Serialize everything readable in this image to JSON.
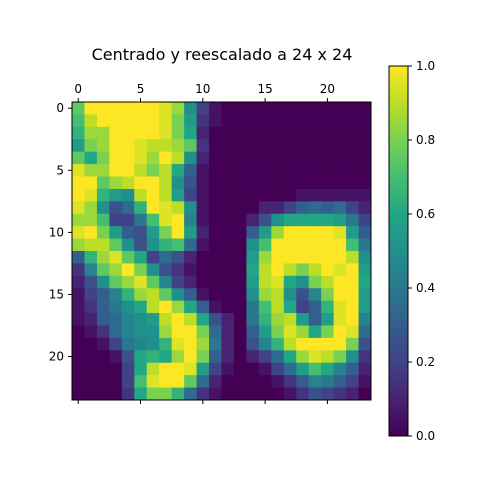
{
  "chart_data": {
    "type": "heatmap",
    "title": "Centrado y reescalado a 24 x 24",
    "xlabel": "",
    "ylabel": "",
    "colormap": "viridis",
    "x_axis_position": "top",
    "x_ticks": [
      0,
      5,
      10,
      15,
      20
    ],
    "y_ticks": [
      0,
      5,
      10,
      15,
      20
    ],
    "xlim": [
      -0.5,
      23.5
    ],
    "ylim": [
      23.5,
      -0.5
    ],
    "colorbar": {
      "range": [
        0.0,
        1.0
      ],
      "ticks": [
        "0.0",
        "0.2",
        "0.4",
        "0.6",
        "0.8",
        "1.0"
      ],
      "placement": "right"
    },
    "grid": false,
    "rows": [
      [
        0.75,
        1.0,
        1.0,
        1.0,
        1.0,
        1.0,
        1.0,
        0.95,
        0.85,
        0.5,
        0.2,
        0.05,
        0.0,
        0.0,
        0.0,
        0.0,
        0.0,
        0.0,
        0.0,
        0.0,
        0.0,
        0.0,
        0.0,
        0.0
      ],
      [
        0.7,
        0.9,
        1.0,
        1.0,
        1.0,
        1.0,
        1.0,
        0.95,
        0.8,
        0.55,
        0.15,
        0.05,
        0.0,
        0.0,
        0.0,
        0.0,
        0.0,
        0.0,
        0.0,
        0.0,
        0.0,
        0.0,
        0.0,
        0.0
      ],
      [
        0.65,
        0.85,
        0.85,
        1.0,
        1.0,
        1.0,
        1.0,
        0.95,
        0.8,
        0.6,
        0.1,
        0.0,
        0.0,
        0.0,
        0.0,
        0.0,
        0.0,
        0.0,
        0.0,
        0.0,
        0.0,
        0.0,
        0.0,
        0.0
      ],
      [
        0.55,
        0.8,
        0.85,
        1.0,
        1.0,
        0.95,
        0.9,
        0.9,
        0.85,
        0.75,
        0.15,
        0.0,
        0.0,
        0.0,
        0.0,
        0.0,
        0.0,
        0.0,
        0.0,
        0.0,
        0.0,
        0.0,
        0.0,
        0.0
      ],
      [
        0.75,
        0.6,
        0.8,
        1.0,
        1.0,
        0.95,
        0.85,
        1.0,
        0.9,
        0.5,
        0.1,
        0.0,
        0.0,
        0.0,
        0.0,
        0.0,
        0.0,
        0.0,
        0.0,
        0.0,
        0.0,
        0.0,
        0.0,
        0.0
      ],
      [
        0.95,
        0.85,
        0.85,
        1.0,
        1.0,
        0.9,
        0.8,
        0.9,
        0.6,
        0.3,
        0.05,
        0.0,
        0.0,
        0.0,
        0.0,
        0.0,
        0.0,
        0.0,
        0.0,
        0.0,
        0.0,
        0.0,
        0.0,
        0.0
      ],
      [
        1.0,
        1.0,
        0.75,
        0.85,
        0.9,
        1.0,
        1.0,
        0.9,
        0.5,
        0.25,
        0.05,
        0.0,
        0.0,
        0.0,
        0.0,
        0.0,
        0.0,
        0.0,
        0.0,
        0.0,
        0.0,
        0.0,
        0.0,
        0.0
      ],
      [
        1.0,
        0.95,
        0.65,
        0.55,
        0.5,
        0.9,
        1.0,
        0.9,
        0.55,
        0.2,
        0.05,
        0.0,
        0.0,
        0.0,
        0.0,
        0.0,
        0.0,
        0.0,
        0.05,
        0.05,
        0.05,
        0.05,
        0.05,
        0.05
      ],
      [
        0.95,
        0.85,
        0.5,
        0.25,
        0.35,
        0.65,
        1.0,
        0.95,
        0.9,
        0.5,
        0.05,
        0.0,
        0.0,
        0.0,
        0.0,
        0.1,
        0.1,
        0.2,
        0.3,
        0.35,
        0.3,
        0.35,
        0.2,
        0.1
      ],
      [
        0.85,
        0.85,
        0.7,
        0.2,
        0.2,
        0.4,
        0.7,
        0.95,
        1.0,
        0.45,
        0.05,
        0.0,
        0.0,
        0.0,
        0.1,
        0.25,
        0.5,
        0.6,
        0.6,
        0.6,
        0.6,
        0.55,
        0.4,
        0.2
      ],
      [
        0.95,
        1.0,
        0.8,
        0.55,
        0.3,
        0.25,
        0.55,
        0.8,
        1.0,
        0.55,
        0.1,
        0.0,
        0.0,
        0.0,
        0.3,
        0.55,
        0.85,
        1.0,
        1.0,
        1.0,
        1.0,
        0.95,
        0.55,
        0.3
      ],
      [
        0.85,
        0.9,
        0.9,
        0.75,
        0.5,
        0.25,
        0.5,
        0.65,
        0.7,
        0.35,
        0.05,
        0.0,
        0.0,
        0.0,
        0.5,
        0.7,
        1.0,
        1.0,
        1.0,
        1.0,
        1.0,
        1.0,
        0.7,
        0.4
      ],
      [
        0.3,
        0.65,
        0.85,
        0.95,
        0.75,
        0.6,
        0.2,
        0.35,
        0.25,
        0.1,
        0.0,
        0.0,
        0.0,
        0.0,
        0.55,
        0.85,
        1.0,
        1.0,
        1.0,
        1.0,
        1.0,
        1.0,
        0.9,
        0.5
      ],
      [
        0.15,
        0.45,
        0.75,
        0.85,
        1.0,
        0.8,
        0.5,
        0.25,
        0.15,
        0.05,
        0.0,
        0.0,
        0.0,
        0.0,
        0.6,
        0.9,
        1.0,
        0.9,
        0.8,
        0.9,
        1.0,
        0.95,
        1.0,
        0.55
      ],
      [
        0.1,
        0.25,
        0.5,
        0.75,
        0.85,
        0.95,
        0.75,
        0.45,
        0.2,
        0.1,
        0.0,
        0.0,
        0.0,
        0.0,
        0.55,
        0.9,
        0.95,
        0.6,
        0.5,
        0.8,
        0.9,
        1.0,
        1.0,
        0.6
      ],
      [
        0.05,
        0.2,
        0.3,
        0.45,
        0.65,
        0.85,
        0.9,
        0.75,
        0.5,
        0.3,
        0.05,
        0.0,
        0.0,
        0.0,
        0.5,
        0.85,
        0.9,
        0.5,
        0.25,
        0.45,
        0.8,
        1.0,
        1.0,
        0.55
      ],
      [
        0.05,
        0.15,
        0.3,
        0.4,
        0.5,
        0.6,
        0.9,
        1.0,
        0.85,
        0.6,
        0.3,
        0.05,
        0.0,
        0.0,
        0.4,
        0.7,
        0.9,
        0.6,
        0.2,
        0.3,
        0.65,
        0.95,
        1.0,
        0.55
      ],
      [
        0.05,
        0.1,
        0.3,
        0.35,
        0.45,
        0.5,
        0.55,
        0.9,
        1.0,
        0.9,
        0.6,
        0.25,
        0.1,
        0.0,
        0.4,
        0.65,
        0.85,
        0.9,
        0.55,
        0.3,
        0.55,
        0.95,
        1.0,
        0.45
      ],
      [
        0.0,
        0.05,
        0.15,
        0.35,
        0.45,
        0.5,
        0.5,
        0.85,
        1.0,
        1.0,
        0.8,
        0.35,
        0.1,
        0.0,
        0.3,
        0.55,
        0.8,
        0.95,
        0.85,
        0.6,
        0.8,
        1.0,
        0.95,
        0.35
      ],
      [
        0.0,
        0.0,
        0.05,
        0.2,
        0.4,
        0.45,
        0.5,
        0.65,
        0.95,
        1.0,
        0.85,
        0.4,
        0.1,
        0.0,
        0.25,
        0.45,
        0.65,
        0.9,
        1.0,
        1.0,
        1.0,
        1.0,
        0.8,
        0.25
      ],
      [
        0.0,
        0.0,
        0.0,
        0.05,
        0.25,
        0.6,
        0.65,
        0.6,
        0.85,
        1.0,
        0.8,
        0.3,
        0.1,
        0.0,
        0.1,
        0.2,
        0.35,
        0.6,
        0.85,
        0.95,
        0.9,
        0.8,
        0.5,
        0.15
      ],
      [
        0.0,
        0.0,
        0.0,
        0.0,
        0.2,
        0.6,
        0.9,
        1.0,
        1.0,
        0.95,
        0.55,
        0.2,
        0.05,
        0.0,
        0.0,
        0.05,
        0.2,
        0.35,
        0.55,
        0.7,
        0.6,
        0.45,
        0.3,
        0.1
      ],
      [
        0.0,
        0.0,
        0.0,
        0.0,
        0.2,
        0.7,
        0.95,
        1.0,
        1.0,
        0.75,
        0.35,
        0.1,
        0.0,
        0.0,
        0.0,
        0.0,
        0.05,
        0.15,
        0.3,
        0.45,
        0.4,
        0.3,
        0.2,
        0.05
      ],
      [
        0.0,
        0.0,
        0.0,
        0.0,
        0.15,
        0.6,
        0.8,
        0.8,
        0.65,
        0.35,
        0.15,
        0.05,
        0.0,
        0.0,
        0.0,
        0.0,
        0.0,
        0.05,
        0.15,
        0.25,
        0.2,
        0.15,
        0.1,
        0.0
      ]
    ]
  }
}
